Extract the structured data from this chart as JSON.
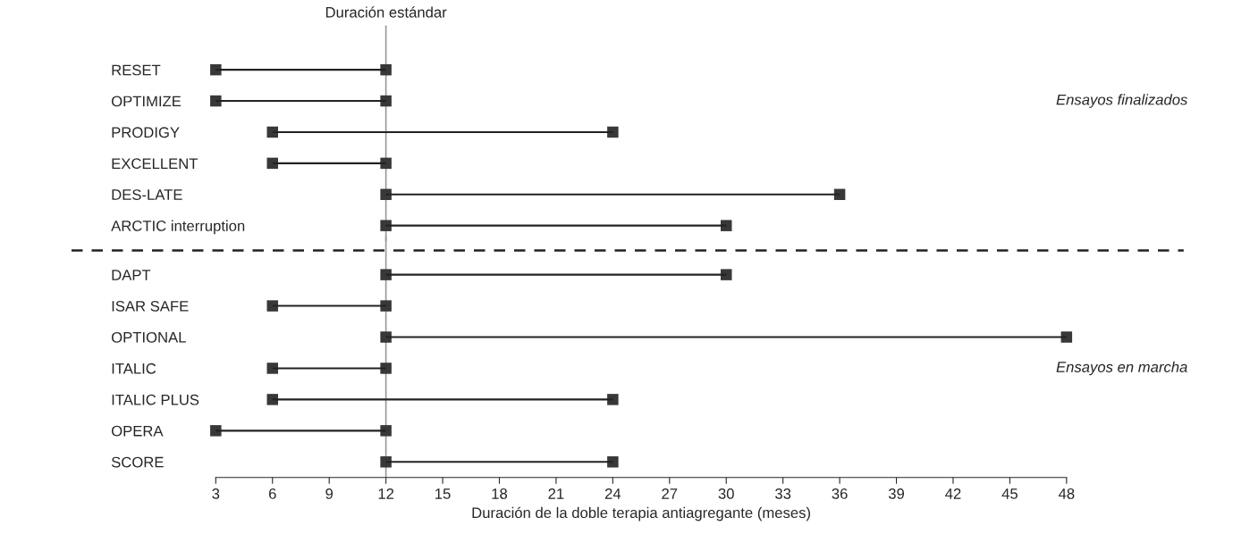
{
  "chart_data": [
    {
      "type": "bar",
      "orientation": "horizontal",
      "marker": "square",
      "color": "#222222",
      "tick_labels": "y",
      "categories": [
        "RESET",
        "OPTIMIZE",
        "PRODIGY",
        "EXCELLENT",
        "DES-LATE",
        "ARCTIC interruption"
      ],
      "base": [
        3,
        3,
        6,
        6,
        12,
        12
      ],
      "values": [
        9,
        9,
        18,
        6,
        24,
        18
      ],
      "xlim": [
        3,
        48
      ],
      "xticks": [
        3,
        6,
        9,
        12,
        15,
        18,
        21,
        24,
        27,
        30,
        33,
        36,
        39,
        42,
        45,
        48
      ],
      "ref_lines": [
        {
          "axis": "x",
          "value": 12,
          "label": "Duración estándar",
          "color": "#999999"
        }
      ],
      "annotations": [
        "Ensayos finalizados"
      ]
    },
    {
      "type": "bar",
      "orientation": "horizontal",
      "marker": "square",
      "color": "#222222",
      "categories": [
        "DAPT",
        "ISAR SAFE",
        "OPTIONAL",
        "ITALIC",
        "ITALIC PLUS",
        "OPERA",
        "SCORE"
      ],
      "base": [
        12,
        6,
        12,
        6,
        6,
        3,
        12
      ],
      "values": [
        18,
        6,
        36,
        6,
        18,
        9,
        12
      ],
      "xlim": [
        3,
        48
      ],
      "xticks": [
        3,
        6,
        9,
        12,
        15,
        18,
        21,
        24,
        27,
        30,
        33,
        36,
        39,
        42,
        45,
        48
      ],
      "xlabel": "Duración de la doble terapia antiagregante (meses)",
      "ref_lines": [
        {
          "axis": "x",
          "value": 12,
          "color": "#999999"
        }
      ],
      "annotations": [
        "Ensayos en marcha"
      ]
    }
  ]
}
